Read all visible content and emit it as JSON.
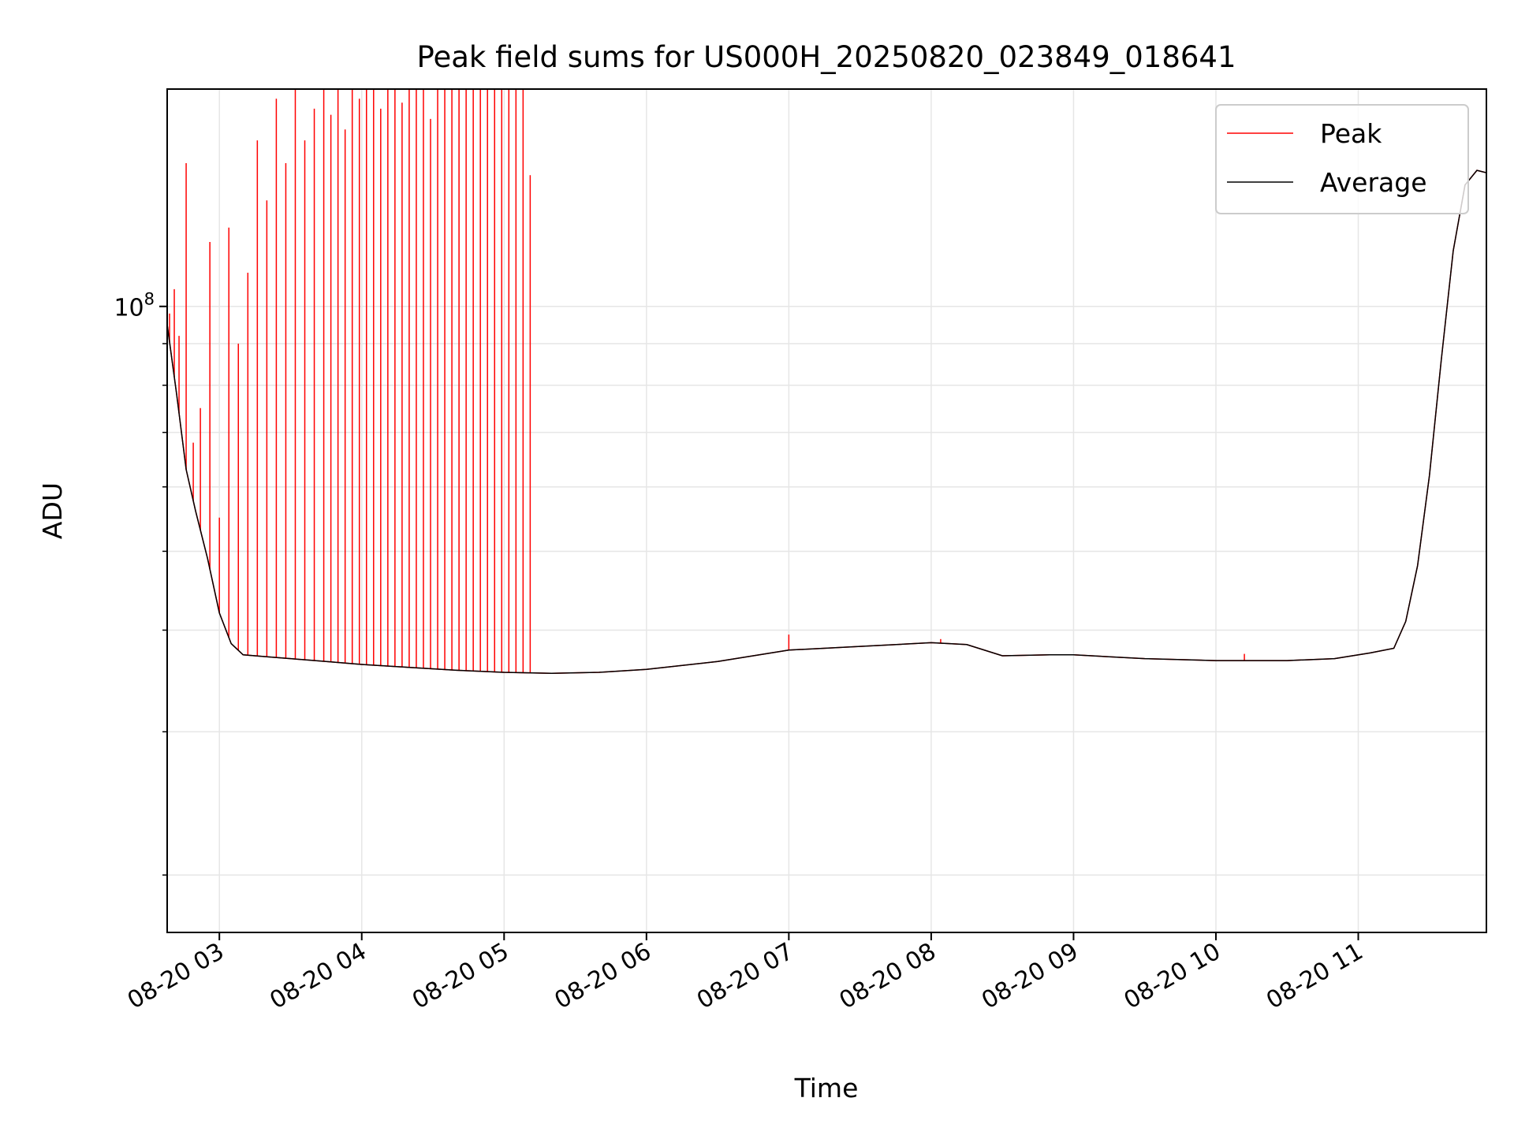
{
  "chart_data": {
    "type": "line",
    "title": "Peak field sums for US000H_20250820_023849_018641",
    "xlabel": "Time",
    "ylabel": "ADU",
    "y_scale": "log",
    "ylim": [
      17000000,
      185000000
    ],
    "xlim": [
      "2025-08-20 02:38",
      "2025-08-20 11:54"
    ],
    "x_ticks": [
      {
        "t": "2025-08-20 03:00",
        "label": "08-20 03"
      },
      {
        "t": "2025-08-20 04:00",
        "label": "08-20 04"
      },
      {
        "t": "2025-08-20 05:00",
        "label": "08-20 05"
      },
      {
        "t": "2025-08-20 06:00",
        "label": "08-20 06"
      },
      {
        "t": "2025-08-20 07:00",
        "label": "08-20 07"
      },
      {
        "t": "2025-08-20 08:00",
        "label": "08-20 08"
      },
      {
        "t": "2025-08-20 09:00",
        "label": "08-20 09"
      },
      {
        "t": "2025-08-20 10:00",
        "label": "08-20 10"
      },
      {
        "t": "2025-08-20 11:00",
        "label": "08-20 11"
      }
    ],
    "y_major_ticks": [
      {
        "value": 100000000,
        "label": "10^8"
      }
    ],
    "y_minor_ticks": [
      20000000,
      30000000,
      40000000,
      50000000,
      60000000,
      70000000,
      80000000,
      90000000
    ],
    "grid": true,
    "legend": {
      "position": "top-right",
      "entries": [
        "Peak",
        "Average"
      ]
    },
    "series": [
      {
        "name": "Average",
        "color": "#000000",
        "x": [
          "2025-08-20 02:38",
          "2025-08-20 02:42",
          "2025-08-20 02:46",
          "2025-08-20 02:50",
          "2025-08-20 02:55",
          "2025-08-20 03:00",
          "2025-08-20 03:05",
          "2025-08-20 03:10",
          "2025-08-20 03:20",
          "2025-08-20 03:30",
          "2025-08-20 03:45",
          "2025-08-20 04:00",
          "2025-08-20 04:20",
          "2025-08-20 04:40",
          "2025-08-20 05:00",
          "2025-08-20 05:20",
          "2025-08-20 05:40",
          "2025-08-20 06:00",
          "2025-08-20 06:30",
          "2025-08-20 07:00",
          "2025-08-20 07:30",
          "2025-08-20 08:00",
          "2025-08-20 08:15",
          "2025-08-20 08:30",
          "2025-08-20 08:50",
          "2025-08-20 09:00",
          "2025-08-20 09:30",
          "2025-08-20 10:00",
          "2025-08-20 10:30",
          "2025-08-20 10:50",
          "2025-08-20 11:05",
          "2025-08-20 11:15",
          "2025-08-20 11:20",
          "2025-08-20 11:25",
          "2025-08-20 11:30",
          "2025-08-20 11:35",
          "2025-08-20 11:40",
          "2025-08-20 11:45",
          "2025-08-20 11:50",
          "2025-08-20 11:54"
        ],
        "y": [
          95000000,
          78000000,
          63000000,
          56000000,
          49000000,
          42000000,
          38500000,
          37300000,
          37100000,
          36900000,
          36600000,
          36300000,
          36000000,
          35700000,
          35500000,
          35400000,
          35500000,
          35800000,
          36600000,
          37800000,
          38200000,
          38600000,
          38400000,
          37200000,
          37300000,
          37300000,
          36900000,
          36700000,
          36700000,
          36900000,
          37500000,
          38000000,
          41000000,
          48000000,
          62000000,
          86000000,
          117000000,
          141000000,
          147000000,
          146000000
        ]
      },
      {
        "name": "Peak",
        "color": "#ff0000",
        "x": [
          "2025-08-20 02:39",
          "2025-08-20 02:41",
          "2025-08-20 02:43",
          "2025-08-20 02:46",
          "2025-08-20 02:49",
          "2025-08-20 02:52",
          "2025-08-20 02:56",
          "2025-08-20 03:00",
          "2025-08-20 03:04",
          "2025-08-20 03:08",
          "2025-08-20 03:12",
          "2025-08-20 03:16",
          "2025-08-20 03:20",
          "2025-08-20 03:24",
          "2025-08-20 03:28",
          "2025-08-20 03:32",
          "2025-08-20 03:36",
          "2025-08-20 03:40",
          "2025-08-20 03:44",
          "2025-08-20 03:47",
          "2025-08-20 03:50",
          "2025-08-20 03:53",
          "2025-08-20 03:56",
          "2025-08-20 03:59",
          "2025-08-20 04:02",
          "2025-08-20 04:05",
          "2025-08-20 04:08",
          "2025-08-20 04:11",
          "2025-08-20 04:14",
          "2025-08-20 04:17",
          "2025-08-20 04:20",
          "2025-08-20 04:23",
          "2025-08-20 04:26",
          "2025-08-20 04:29",
          "2025-08-20 04:32",
          "2025-08-20 04:35",
          "2025-08-20 04:38",
          "2025-08-20 04:41",
          "2025-08-20 04:44",
          "2025-08-20 04:47",
          "2025-08-20 04:50",
          "2025-08-20 04:53",
          "2025-08-20 04:56",
          "2025-08-20 04:59",
          "2025-08-20 05:02",
          "2025-08-20 05:05",
          "2025-08-20 05:08",
          "2025-08-20 05:11",
          "2025-08-20 07:00",
          "2025-08-20 08:04",
          "2025-08-20 10:12"
        ],
        "y": [
          98000000,
          105000000,
          92000000,
          150000000,
          68000000,
          75000000,
          120000000,
          55000000,
          125000000,
          90000000,
          110000000,
          160000000,
          135000000,
          180000000,
          150000000,
          185000000,
          160000000,
          175000000,
          185000000,
          172000000,
          185000000,
          165000000,
          185000000,
          180000000,
          185000000,
          185000000,
          175000000,
          185000000,
          185000000,
          178000000,
          185000000,
          185000000,
          185000000,
          170000000,
          185000000,
          185000000,
          185000000,
          185000000,
          185000000,
          185000000,
          185000000,
          185000000,
          185000000,
          185000000,
          185000000,
          185000000,
          185000000,
          145000000,
          39500000,
          39000000,
          37400000
        ]
      }
    ]
  }
}
